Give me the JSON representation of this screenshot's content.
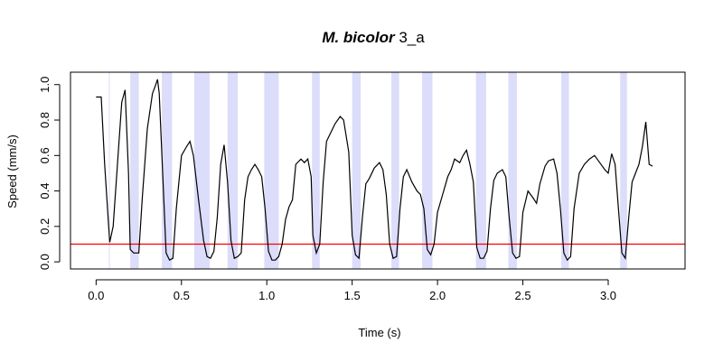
{
  "chart_data": {
    "type": "line",
    "title_italic": "M. bicolor",
    "title_rest": " 3_a",
    "xlabel": "Time (s)",
    "ylabel": "Speed (mm/s)",
    "xlim": [
      -0.15,
      3.45
    ],
    "ylim": [
      -0.04,
      1.07
    ],
    "xticks": [
      0.0,
      0.5,
      1.0,
      1.5,
      2.0,
      2.5,
      3.0
    ],
    "xtick_labels": [
      "0.0",
      "0.5",
      "1.0",
      "1.5",
      "2.0",
      "2.5",
      "3.0"
    ],
    "yticks": [
      0.0,
      0.2,
      0.4,
      0.6,
      0.8,
      1.0
    ],
    "ytick_labels": [
      "0.0",
      "0.2",
      "0.4",
      "0.6",
      "0.8",
      "1.0"
    ],
    "threshold": 0.1,
    "threshold_color": "#ff0000",
    "band_color": "#dcdcfb",
    "bands": [
      [
        0.075,
        0.08
      ],
      [
        0.2,
        0.25
      ],
      [
        0.385,
        0.445
      ],
      [
        0.575,
        0.665
      ],
      [
        0.77,
        0.83
      ],
      [
        0.985,
        1.07
      ],
      [
        1.265,
        1.31
      ],
      [
        1.5,
        1.55
      ],
      [
        1.73,
        1.775
      ],
      [
        1.91,
        1.97
      ],
      [
        2.225,
        2.285
      ],
      [
        2.415,
        2.465
      ],
      [
        2.725,
        2.77
      ],
      [
        3.07,
        3.11
      ]
    ],
    "series": [
      {
        "color": "#000000",
        "x": [
          0.0,
          0.03,
          0.05,
          0.08,
          0.1,
          0.13,
          0.15,
          0.17,
          0.19,
          0.2,
          0.22,
          0.25,
          0.27,
          0.3,
          0.33,
          0.35,
          0.36,
          0.37,
          0.39,
          0.41,
          0.43,
          0.45,
          0.47,
          0.5,
          0.53,
          0.55,
          0.57,
          0.6,
          0.63,
          0.65,
          0.67,
          0.69,
          0.71,
          0.73,
          0.75,
          0.77,
          0.79,
          0.81,
          0.83,
          0.85,
          0.87,
          0.89,
          0.91,
          0.93,
          0.95,
          0.97,
          0.99,
          1.01,
          1.03,
          1.05,
          1.07,
          1.09,
          1.11,
          1.13,
          1.15,
          1.17,
          1.2,
          1.22,
          1.24,
          1.26,
          1.27,
          1.29,
          1.31,
          1.33,
          1.35,
          1.37,
          1.4,
          1.43,
          1.45,
          1.48,
          1.5,
          1.52,
          1.54,
          1.56,
          1.58,
          1.6,
          1.63,
          1.66,
          1.68,
          1.7,
          1.72,
          1.74,
          1.76,
          1.78,
          1.8,
          1.82,
          1.85,
          1.88,
          1.9,
          1.92,
          1.94,
          1.96,
          1.98,
          2.0,
          2.03,
          2.06,
          2.08,
          2.1,
          2.13,
          2.15,
          2.17,
          2.19,
          2.21,
          2.23,
          2.25,
          2.27,
          2.29,
          2.31,
          2.33,
          2.35,
          2.38,
          2.4,
          2.42,
          2.44,
          2.46,
          2.48,
          2.5,
          2.53,
          2.56,
          2.58,
          2.6,
          2.63,
          2.65,
          2.68,
          2.7,
          2.72,
          2.74,
          2.76,
          2.78,
          2.8,
          2.83,
          2.86,
          2.89,
          2.92,
          2.95,
          2.98,
          3.0,
          3.02,
          3.04,
          3.06,
          3.08,
          3.1,
          3.12,
          3.14,
          3.16,
          3.18,
          3.2,
          3.22,
          3.24,
          3.26
        ],
        "y": [
          0.93,
          0.93,
          0.55,
          0.11,
          0.2,
          0.62,
          0.9,
          0.97,
          0.5,
          0.07,
          0.05,
          0.05,
          0.35,
          0.75,
          0.95,
          1.0,
          1.03,
          0.95,
          0.5,
          0.05,
          0.01,
          0.02,
          0.3,
          0.6,
          0.65,
          0.68,
          0.6,
          0.35,
          0.12,
          0.03,
          0.02,
          0.06,
          0.25,
          0.55,
          0.66,
          0.45,
          0.12,
          0.02,
          0.03,
          0.05,
          0.35,
          0.48,
          0.52,
          0.55,
          0.52,
          0.48,
          0.3,
          0.06,
          0.01,
          0.01,
          0.03,
          0.1,
          0.24,
          0.31,
          0.35,
          0.55,
          0.58,
          0.56,
          0.58,
          0.48,
          0.15,
          0.05,
          0.1,
          0.45,
          0.68,
          0.72,
          0.78,
          0.82,
          0.8,
          0.62,
          0.15,
          0.04,
          0.02,
          0.25,
          0.44,
          0.47,
          0.53,
          0.56,
          0.52,
          0.38,
          0.1,
          0.02,
          0.03,
          0.3,
          0.48,
          0.52,
          0.45,
          0.4,
          0.38,
          0.3,
          0.07,
          0.04,
          0.1,
          0.28,
          0.38,
          0.48,
          0.52,
          0.58,
          0.56,
          0.6,
          0.63,
          0.55,
          0.45,
          0.08,
          0.02,
          0.02,
          0.06,
          0.3,
          0.46,
          0.5,
          0.52,
          0.48,
          0.25,
          0.05,
          0.02,
          0.03,
          0.28,
          0.4,
          0.36,
          0.33,
          0.44,
          0.54,
          0.57,
          0.58,
          0.5,
          0.3,
          0.05,
          0.01,
          0.03,
          0.3,
          0.5,
          0.55,
          0.58,
          0.6,
          0.56,
          0.52,
          0.5,
          0.61,
          0.55,
          0.3,
          0.05,
          0.02,
          0.25,
          0.45,
          0.5,
          0.55,
          0.65,
          0.79,
          0.55,
          0.54
        ]
      }
    ]
  }
}
